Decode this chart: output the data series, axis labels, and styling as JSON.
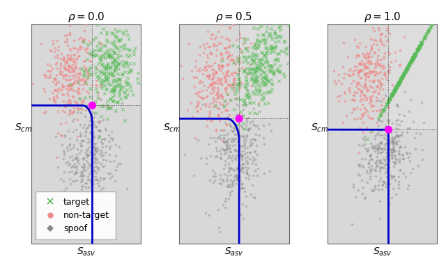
{
  "rho_values": [
    0.0,
    0.5,
    1.0
  ],
  "figsize": [
    6.4,
    3.85
  ],
  "dpi": 100,
  "plot_bg": "#d8d8d8",
  "white_region": "#e8e8e8",
  "target_color": "#55bb55",
  "nontarget_color": "#ee8888",
  "spoof_color": "#888888",
  "curve_color": "#0000cc",
  "dot_color": "#ff00ff",
  "n_samples": 300,
  "seeds": [
    10,
    20,
    30
  ],
  "rho0": {
    "theta_asv": 0.25,
    "theta_cm": 0.35,
    "tar_mean_asv": 1.0,
    "tar_mean_cm": 1.2,
    "nt_mean_asv": -0.6,
    "nt_mean_cm": 1.0,
    "sp_mean_asv": 0.1,
    "sp_mean_cm": -0.8
  },
  "rho05": {
    "theta_asv": 0.2,
    "theta_cm": 0.05,
    "tar_mean_asv": 1.0,
    "tar_mean_cm": 1.2,
    "nt_mean_asv": -0.6,
    "nt_mean_cm": 1.0,
    "sp_mean_asv": 0.1,
    "sp_mean_cm": -0.8
  },
  "rho10": {
    "theta_asv": 0.25,
    "theta_cm": -0.2,
    "tar_mean_asv": 1.0,
    "tar_mean_cm": 1.2,
    "nt_mean_asv": -0.6,
    "nt_mean_cm": 1.0,
    "sp_mean_asv": 0.1,
    "sp_mean_cm": -0.8
  },
  "xlim": [
    -2.2,
    2.2
  ],
  "ylim": [
    -2.8,
    2.2
  ]
}
